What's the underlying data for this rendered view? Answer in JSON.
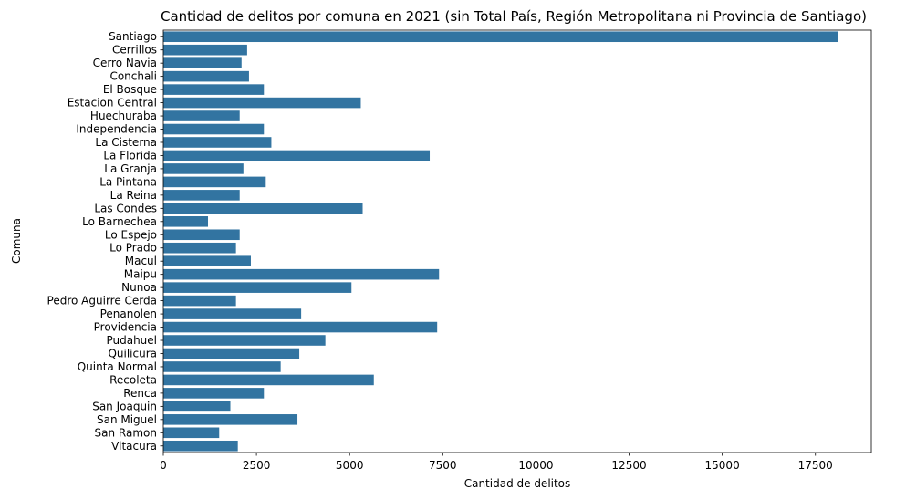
{
  "chart_data": {
    "type": "bar",
    "orientation": "horizontal",
    "title": "Cantidad de delitos por comuna en 2021 (sin Total País, Región Metropolitana ni Provincia de Santiago)",
    "xlabel": "Cantidad de delitos",
    "ylabel": "Comuna",
    "xlim": [
      0,
      19000
    ],
    "xticks": [
      0,
      2500,
      5000,
      7500,
      10000,
      12500,
      15000,
      17500
    ],
    "grid": false,
    "color": "#3274a1",
    "categories": [
      "Santiago",
      "Cerrillos",
      "Cerro Navia",
      "Conchali",
      "El Bosque",
      "Estacion Central",
      "Huechuraba",
      "Independencia",
      "La Cisterna",
      "La Florida",
      "La Granja",
      "La Pintana",
      "La Reina",
      "Las Condes",
      "Lo Barnechea",
      "Lo Espejo",
      "Lo Prado",
      "Macul",
      "Maipu",
      "Nunoa",
      "Pedro Aguirre Cerda",
      "Penanolen",
      "Providencia",
      "Pudahuel",
      "Quilicura",
      "Quinta Normal",
      "Recoleta",
      "Renca",
      "San Joaquin",
      "San Miguel",
      "San Ramon",
      "Vitacura"
    ],
    "values": [
      18100,
      2250,
      2100,
      2300,
      2700,
      5300,
      2050,
      2700,
      2900,
      7150,
      2150,
      2750,
      2050,
      5350,
      1200,
      2050,
      1950,
      2350,
      7400,
      5050,
      1950,
      3700,
      7350,
      4350,
      3650,
      3150,
      5650,
      2700,
      1800,
      3600,
      1500,
      2000
    ]
  }
}
